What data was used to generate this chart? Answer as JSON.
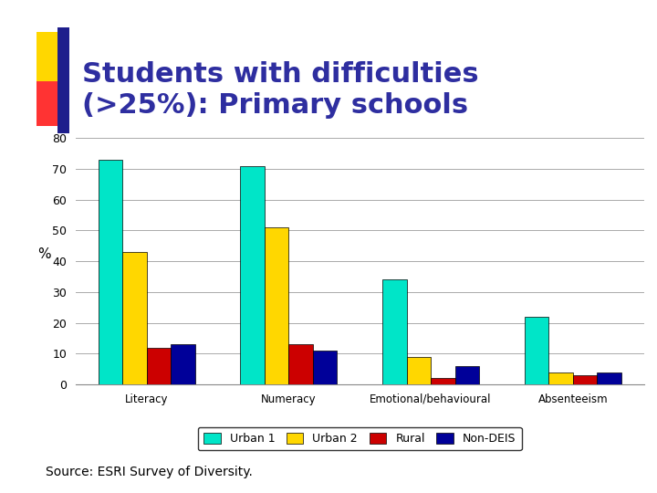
{
  "title": "Students with difficulties\n(>25%): Primary schools",
  "ylabel": "%",
  "source_text": "Source: ESRI Survey of Diversity.",
  "categories": [
    "Literacy",
    "Numeracy",
    "Emotional/behavioural",
    "Absenteeism"
  ],
  "series": {
    "Urban 1": [
      73,
      71,
      34,
      22
    ],
    "Urban 2": [
      43,
      51,
      9,
      4
    ],
    "Rural": [
      12,
      13,
      2,
      3
    ],
    "Non-DEIS": [
      13,
      11,
      6,
      4
    ]
  },
  "colors": {
    "Urban 1": "#00E5C8",
    "Urban 2": "#FFD700",
    "Rural": "#CC0000",
    "Non-DEIS": "#000099"
  },
  "ylim": [
    0,
    80
  ],
  "yticks": [
    0,
    10,
    20,
    30,
    40,
    50,
    60,
    70,
    80
  ],
  "title_color": "#2E2EA0",
  "title_fontsize": 22,
  "background_color": "#FFFFFF",
  "bar_edge_color": "#000000",
  "grid_color": "#AAAAAA",
  "legend_labels": [
    "Urban 1",
    "Urban 2",
    "Rural",
    "Non-DEIS"
  ],
  "deco_yellow": "#FFD700",
  "deco_red": "#FF3333",
  "deco_blue": "#1E1E8C"
}
